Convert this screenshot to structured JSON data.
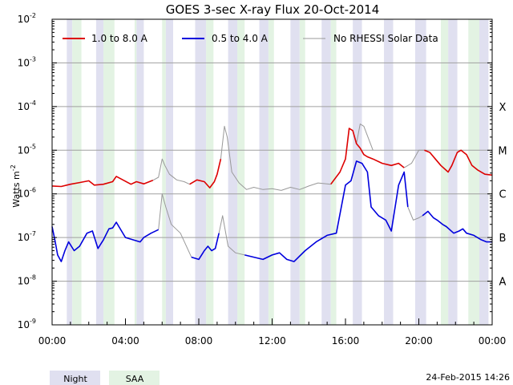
{
  "chart_data": {
    "type": "line",
    "title": "GOES 3-sec X-ray Flux   20-Oct-2014",
    "ylabel": "Watts m",
    "ylabel_sup": "-2",
    "xlabel": "",
    "yscale": "log",
    "ylim_exp": [
      -9,
      -2
    ],
    "y_ticks": [
      {
        "base": "10",
        "exp": "-2"
      },
      {
        "base": "10",
        "exp": "-3"
      },
      {
        "base": "10",
        "exp": "-4"
      },
      {
        "base": "10",
        "exp": "-5"
      },
      {
        "base": "10",
        "exp": "-6"
      },
      {
        "base": "10",
        "exp": "-7"
      },
      {
        "base": "10",
        "exp": "-8"
      },
      {
        "base": "10",
        "exp": "-9"
      }
    ],
    "y_tick_exps": [
      -2,
      -3,
      -4,
      -5,
      -6,
      -7,
      -8,
      -9
    ],
    "x_range_hours": [
      0,
      24
    ],
    "x_ticks": [
      "00:00",
      "04:00",
      "08:00",
      "12:00",
      "16:00",
      "20:00",
      "00:00"
    ],
    "x_tick_hours": [
      0,
      4,
      8,
      12,
      16,
      20,
      24
    ],
    "flare_classes": [
      "X",
      "M",
      "C",
      "B",
      "A"
    ],
    "flare_class_exps": [
      -4,
      -5,
      -6,
      -7,
      -8
    ],
    "legend": [
      {
        "label": "1.0 to 8.0 A",
        "color": "#dd0000"
      },
      {
        "label": "0.5 to 4.0 A",
        "color": "#0000dd"
      },
      {
        "label": "No RHESSI Solar Data",
        "color": "#999999"
      }
    ],
    "bottom_legend": [
      "Night",
      "SAA"
    ],
    "timestamp": "24-Feb-2015 14:26",
    "night_intervals_hours": [
      [
        0.8,
        1.1
      ],
      [
        2.4,
        2.8
      ],
      [
        4.6,
        5.0
      ],
      [
        6.2,
        6.6
      ],
      [
        7.8,
        8.4
      ],
      [
        9.6,
        10.1
      ],
      [
        11.3,
        11.8
      ],
      [
        13.0,
        13.5
      ],
      [
        14.7,
        15.2
      ],
      [
        16.4,
        16.9
      ],
      [
        18.1,
        18.6
      ],
      [
        19.8,
        20.4
      ],
      [
        21.6,
        22.1
      ],
      [
        23.3,
        23.8
      ]
    ],
    "saa_intervals_hours": [
      [
        1.1,
        1.6
      ],
      [
        2.8,
        3.4
      ],
      [
        4.5,
        4.6
      ],
      [
        6.0,
        6.2
      ],
      [
        8.4,
        8.8
      ],
      [
        10.1,
        10.5
      ],
      [
        11.8,
        12.1
      ],
      [
        13.5,
        13.8
      ],
      [
        15.2,
        15.5
      ],
      [
        21.2,
        21.6
      ],
      [
        22.7,
        23.3
      ]
    ],
    "series": [
      {
        "name": "1.0 to 8.0 A",
        "color": "#dd0000",
        "note": "segments where RHESSI data available",
        "segments": [
          [
            [
              0,
              -5.82
            ],
            [
              0.5,
              -5.83
            ],
            [
              1.0,
              -5.78
            ],
            [
              1.5,
              -5.74
            ],
            [
              2.0,
              -5.7
            ],
            [
              2.3,
              -5.8
            ],
            [
              2.8,
              -5.78
            ],
            [
              3.3,
              -5.72
            ],
            [
              3.5,
              -5.6
            ],
            [
              4.3,
              -5.78
            ],
            [
              4.6,
              -5.72
            ],
            [
              5.0,
              -5.77
            ],
            [
              5.5,
              -5.69
            ]
          ],
          [
            [
              7.5,
              -5.78
            ],
            [
              7.9,
              -5.68
            ],
            [
              8.3,
              -5.72
            ],
            [
              8.6,
              -5.86
            ],
            [
              8.85,
              -5.72
            ],
            [
              9.0,
              -5.55
            ],
            [
              9.2,
              -5.2
            ]
          ],
          [
            [
              15.2,
              -5.78
            ],
            [
              15.7,
              -5.5
            ],
            [
              16.0,
              -5.2
            ],
            [
              16.2,
              -4.5
            ],
            [
              16.4,
              -4.55
            ],
            [
              16.6,
              -4.85
            ],
            [
              16.8,
              -4.95
            ],
            [
              17.0,
              -5.1
            ],
            [
              17.2,
              -5.15
            ],
            [
              17.5,
              -5.2
            ],
            [
              18.0,
              -5.3
            ],
            [
              18.5,
              -5.35
            ],
            [
              18.9,
              -5.3
            ],
            [
              19.2,
              -5.4
            ]
          ],
          [
            [
              20.3,
              -5.0
            ],
            [
              20.6,
              -5.05
            ],
            [
              20.9,
              -5.2
            ],
            [
              21.2,
              -5.35
            ],
            [
              21.6,
              -5.5
            ],
            [
              21.8,
              -5.35
            ],
            [
              22.1,
              -5.05
            ],
            [
              22.3,
              -5.0
            ],
            [
              22.6,
              -5.1
            ],
            [
              22.9,
              -5.35
            ],
            [
              23.2,
              -5.45
            ],
            [
              23.6,
              -5.55
            ],
            [
              24.0,
              -5.57
            ]
          ]
        ]
      },
      {
        "name": "0.5 to 4.0 A",
        "color": "#0000dd",
        "note": "segments where RHESSI data available",
        "segments": [
          [
            [
              0,
              -6.75
            ],
            [
              0.15,
              -7.05
            ],
            [
              0.3,
              -7.4
            ],
            [
              0.5,
              -7.55
            ],
            [
              0.7,
              -7.3
            ],
            [
              0.9,
              -7.1
            ],
            [
              1.2,
              -7.3
            ],
            [
              1.5,
              -7.2
            ],
            [
              1.9,
              -6.9
            ],
            [
              2.2,
              -6.85
            ],
            [
              2.5,
              -7.25
            ],
            [
              2.8,
              -7.05
            ],
            [
              3.1,
              -6.8
            ],
            [
              3.3,
              -6.78
            ],
            [
              3.5,
              -6.65
            ],
            [
              4.0,
              -7.0
            ],
            [
              4.4,
              -7.05
            ],
            [
              4.8,
              -7.1
            ],
            [
              5.0,
              -7.0
            ],
            [
              5.4,
              -6.9
            ],
            [
              5.8,
              -6.82
            ]
          ],
          [
            [
              7.6,
              -7.45
            ],
            [
              8.0,
              -7.5
            ],
            [
              8.3,
              -7.3
            ],
            [
              8.5,
              -7.2
            ],
            [
              8.7,
              -7.3
            ],
            [
              8.9,
              -7.25
            ],
            [
              9.1,
              -6.9
            ]
          ],
          [
            [
              10.5,
              -7.4
            ],
            [
              11.0,
              -7.45
            ],
            [
              11.5,
              -7.5
            ],
            [
              12.0,
              -7.4
            ],
            [
              12.4,
              -7.35
            ],
            [
              12.8,
              -7.5
            ],
            [
              13.2,
              -7.55
            ],
            [
              13.8,
              -7.3
            ],
            [
              14.4,
              -7.1
            ],
            [
              15.0,
              -6.95
            ],
            [
              15.5,
              -6.9
            ],
            [
              16.0,
              -5.8
            ],
            [
              16.3,
              -5.7
            ],
            [
              16.6,
              -5.25
            ],
            [
              16.9,
              -5.3
            ],
            [
              17.2,
              -5.5
            ],
            [
              17.4,
              -6.3
            ],
            [
              17.8,
              -6.5
            ],
            [
              18.2,
              -6.6
            ],
            [
              18.5,
              -6.85
            ],
            [
              18.9,
              -5.8
            ],
            [
              19.2,
              -5.5
            ],
            [
              19.4,
              -6.3
            ]
          ],
          [
            [
              20.2,
              -6.5
            ],
            [
              20.5,
              -6.4
            ],
            [
              20.8,
              -6.55
            ],
            [
              21.0,
              -6.6
            ],
            [
              21.3,
              -6.7
            ],
            [
              21.5,
              -6.75
            ],
            [
              21.9,
              -6.9
            ],
            [
              22.2,
              -6.85
            ],
            [
              22.4,
              -6.8
            ],
            [
              22.6,
              -6.9
            ],
            [
              23.0,
              -6.95
            ],
            [
              23.4,
              -7.05
            ],
            [
              23.7,
              -7.1
            ],
            [
              24.0,
              -7.1
            ]
          ]
        ]
      },
      {
        "name": "No RHESSI Solar Data",
        "color": "#999999",
        "note": "segments without RHESSI coverage (both channels)",
        "segments": [
          [
            [
              5.5,
              -5.69
            ],
            [
              5.8,
              -5.62
            ],
            [
              6.0,
              -5.2
            ],
            [
              6.15,
              -5.35
            ],
            [
              6.4,
              -5.55
            ],
            [
              6.8,
              -5.68
            ],
            [
              7.2,
              -5.72
            ],
            [
              7.5,
              -5.78
            ]
          ],
          [
            [
              5.8,
              -6.82
            ],
            [
              6.0,
              -6.0
            ],
            [
              6.2,
              -6.3
            ],
            [
              6.5,
              -6.7
            ],
            [
              7.0,
              -6.9
            ],
            [
              7.6,
              -7.45
            ]
          ],
          [
            [
              9.2,
              -5.2
            ],
            [
              9.4,
              -4.45
            ],
            [
              9.55,
              -4.7
            ],
            [
              9.8,
              -5.5
            ],
            [
              10.2,
              -5.75
            ],
            [
              10.6,
              -5.9
            ],
            [
              11.0,
              -5.85
            ],
            [
              11.5,
              -5.9
            ],
            [
              12.0,
              -5.88
            ],
            [
              12.5,
              -5.92
            ],
            [
              13.0,
              -5.85
            ],
            [
              13.5,
              -5.9
            ],
            [
              14.0,
              -5.82
            ],
            [
              14.5,
              -5.75
            ],
            [
              15.2,
              -5.78
            ]
          ],
          [
            [
              9.1,
              -6.9
            ],
            [
              9.3,
              -6.5
            ],
            [
              9.6,
              -7.2
            ],
            [
              10.0,
              -7.35
            ],
            [
              10.5,
              -7.4
            ]
          ],
          [
            [
              19.2,
              -5.4
            ],
            [
              19.6,
              -5.3
            ],
            [
              20.0,
              -5.0
            ],
            [
              20.3,
              -5.0
            ]
          ],
          [
            [
              19.4,
              -6.3
            ],
            [
              19.7,
              -6.6
            ],
            [
              20.0,
              -6.55
            ],
            [
              20.2,
              -6.5
            ]
          ],
          [
            [
              16.6,
              -4.85
            ],
            [
              16.8,
              -4.4
            ],
            [
              17.0,
              -4.45
            ],
            [
              17.5,
              -5.0
            ]
          ]
        ]
      }
    ]
  }
}
